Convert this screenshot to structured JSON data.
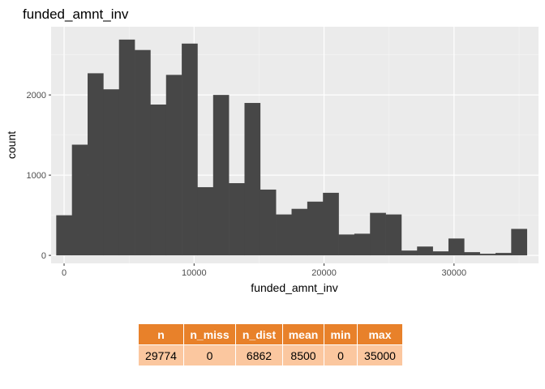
{
  "chart_data": {
    "type": "bar",
    "title": "funded_amnt_inv",
    "xlabel": "funded_amnt_inv",
    "ylabel": "count",
    "xlim": [
      -1000,
      36500
    ],
    "ylim": [
      -100,
      2850
    ],
    "x_ticks": [
      0,
      10000,
      20000,
      30000
    ],
    "x_tick_labels": [
      "0",
      "10000",
      "20000",
      "30000"
    ],
    "y_ticks": [
      0,
      1000,
      2000
    ],
    "y_tick_labels": [
      "0",
      "1000",
      "2000"
    ],
    "grid": true,
    "bin_width": 1207,
    "bins_start": [
      -604,
      603,
      1810,
      3017,
      4224,
      5431,
      6638,
      7845,
      9052,
      10259,
      11466,
      12673,
      13880,
      15087,
      16294,
      17501,
      18708,
      19915,
      21122,
      22329,
      23536,
      24743,
      25950,
      27157,
      28364,
      29571,
      30778,
      31985,
      33192,
      34399
    ],
    "values": [
      500,
      1380,
      2270,
      2070,
      2690,
      2560,
      1880,
      2250,
      2640,
      850,
      2000,
      900,
      1900,
      820,
      510,
      580,
      670,
      780,
      260,
      270,
      530,
      510,
      60,
      110,
      50,
      210,
      40,
      20,
      30,
      330
    ]
  },
  "summary_table": {
    "headers": [
      "n",
      "n_miss",
      "n_dist",
      "mean",
      "min",
      "max"
    ],
    "values": [
      "29774",
      "0",
      "6862",
      "8500",
      "0",
      "35000"
    ]
  },
  "colors": {
    "bar": "#474747",
    "panel_bg": "#ebebeb",
    "grid_major": "#ffffff",
    "header_bg": "#e8812a",
    "cell_bg": "#fbc79f"
  }
}
